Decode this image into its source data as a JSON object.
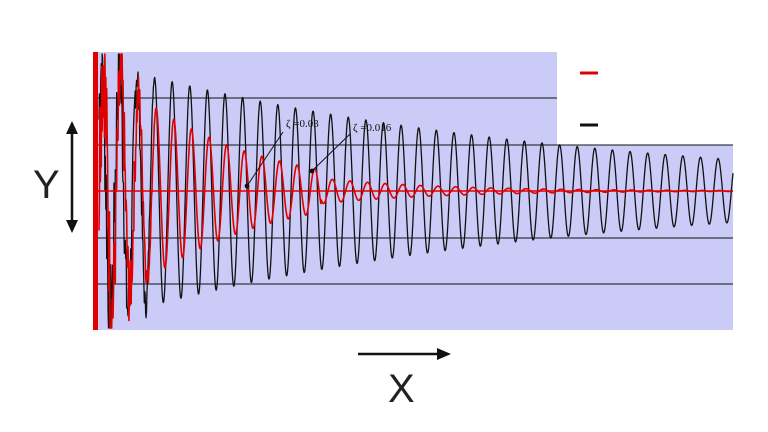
{
  "chart_data": {
    "type": "line",
    "title": "",
    "xlabel": "X",
    "ylabel": "Y",
    "xlim": [
      0,
      1
    ],
    "ylim": [
      -1,
      1
    ],
    "grid": true,
    "legend_position": "top-right",
    "colors": {
      "plot_background": "#cbcbf7",
      "gridline": "#111111",
      "zero_line": "#e00000"
    },
    "series": [
      {
        "color": "#e00000",
        "damping_ratio": 0.03,
        "cycles": 36,
        "envelope_start": 0.93,
        "envelope_end": 0.005
      },
      {
        "color": "#111111",
        "damping_ratio": 0.016,
        "cycles": 36,
        "envelope_start": 0.9,
        "envelope_end": 0.22
      }
    ],
    "annotations": [
      {
        "text": "ζ =0.03",
        "series_index": 0
      },
      {
        "text": "ζ =0.016",
        "series_index": 1
      }
    ],
    "legend": [
      {
        "label": "",
        "color": "#e00000"
      },
      {
        "label": "",
        "color": "#111111"
      }
    ]
  }
}
